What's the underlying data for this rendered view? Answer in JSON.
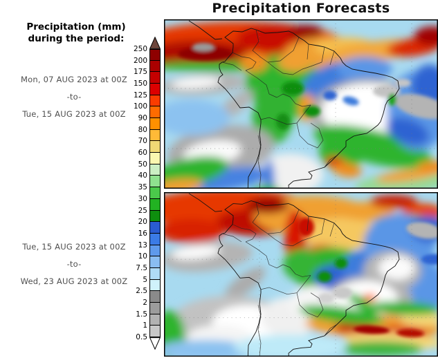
{
  "title": "Precipitation Forecasts",
  "sidebar": {
    "heading_line1": "Precipitation (mm)",
    "heading_line2": "during the period:",
    "period1": {
      "start": "Mon, 07 AUG 2023 at 00Z",
      "separator": "-to-",
      "end": "Tue, 15 AUG 2023 at 00Z"
    },
    "period2": {
      "start": "Tue, 15 AUG 2023 at 00Z",
      "separator": "-to-",
      "end": "Wed, 23 AUG 2023 at 00Z"
    }
  },
  "colorbar": {
    "unit": "mm",
    "labels": [
      "250",
      "200",
      "175",
      "150",
      "125",
      "100",
      "90",
      "80",
      "70",
      "60",
      "50",
      "40",
      "35",
      "30",
      "25",
      "20",
      "16",
      "13",
      "10",
      "7.5",
      "5",
      "2.5",
      "2",
      "1.5",
      "1",
      "0.5"
    ],
    "segment_colors": [
      "#8E0000",
      "#AA0000",
      "#C40000",
      "#DC0000",
      "#FA3C00",
      "#FF6B00",
      "#FF9000",
      "#FFBA37",
      "#F0D975",
      "#FAF7B0",
      "#CBEFC4",
      "#8FE18F",
      "#4BC94B",
      "#22B222",
      "#0E8E0E",
      "#2A5CD0",
      "#3B7BE6",
      "#5F9AEC",
      "#8ABDF2",
      "#B0DBF7",
      "#D0F2FB",
      "#8A8A8A",
      "#9C9C9C",
      "#B2B2B2",
      "#C8C8C8"
    ],
    "above_max_color": "#6E463C",
    "below_min_color": "#FFFFFF"
  },
  "chart_data": {
    "type": "heatmap",
    "title": "Precipitation Forecasts",
    "unit": "mm",
    "region": "South America",
    "scale_levels": [
      0.5,
      1,
      1.5,
      2,
      2.5,
      5,
      7.5,
      10,
      13,
      16,
      20,
      25,
      30,
      35,
      40,
      50,
      60,
      70,
      80,
      90,
      100,
      125,
      150,
      175,
      200,
      250
    ],
    "legend_position": "left",
    "panels": [
      {
        "period_start": "Mon, 07 AUG 2023 at 00Z",
        "period_end": "Tue, 15 AUG 2023 at 00Z"
      },
      {
        "period_start": "Tue, 15 AUG 2023 at 00Z",
        "period_end": "Wed, 23 AUG 2023 at 00Z"
      }
    ]
  },
  "maps": [
    {
      "name": "forecast-map-week1",
      "base_color": "#A8DAF0",
      "blobs": [
        [
          110,
          35,
          150,
          32,
          "#E63900",
          0,
          0
        ],
        [
          50,
          50,
          75,
          20,
          "#AE0700",
          0,
          0
        ],
        [
          160,
          28,
          55,
          20,
          "#C80F00",
          0,
          0
        ],
        [
          205,
          18,
          25,
          10,
          "#960000",
          0,
          0
        ],
        [
          232,
          52,
          60,
          26,
          "#F0A030",
          0,
          0
        ],
        [
          262,
          40,
          45,
          14,
          "#F5C050",
          0,
          0
        ],
        [
          310,
          45,
          75,
          14,
          "#F2A83A",
          -6,
          0
        ],
        [
          362,
          40,
          40,
          13,
          "#DC2800",
          -8,
          0
        ],
        [
          388,
          24,
          26,
          14,
          "#A00000",
          0,
          0
        ],
        [
          90,
          68,
          110,
          8,
          "#2EB42E",
          0,
          0
        ],
        [
          172,
          92,
          55,
          42,
          "#2EB42E",
          0,
          0
        ],
        [
          158,
          140,
          30,
          42,
          "#30B230",
          10,
          0
        ],
        [
          228,
          122,
          48,
          28,
          "#34B434",
          0,
          0
        ],
        [
          253,
          92,
          55,
          30,
          "#3E7BDC",
          -15,
          0
        ],
        [
          290,
          72,
          40,
          18,
          "#5A96E6",
          0,
          0
        ],
        [
          130,
          62,
          20,
          14,
          "#F09020",
          0,
          0
        ],
        [
          190,
          62,
          26,
          14,
          "#F0A030",
          0,
          0
        ],
        [
          207,
          128,
          12,
          20,
          "#F59A1E",
          0,
          0
        ],
        [
          296,
          138,
          85,
          52,
          "#ACACAC",
          0,
          0
        ],
        [
          294,
          133,
          66,
          40,
          "#FFFFFF",
          0,
          0
        ],
        [
          57,
          94,
          62,
          15,
          "#B4B4B4",
          -4,
          0
        ],
        [
          46,
          92,
          36,
          8,
          "#FAFAFA",
          -4,
          0
        ],
        [
          103,
          124,
          32,
          12,
          "#B4B4B4",
          -38,
          0
        ],
        [
          82,
          190,
          78,
          36,
          "#ACACAC",
          -8,
          0
        ],
        [
          70,
          193,
          42,
          17,
          "#FBFBFB",
          -8,
          0
        ],
        [
          182,
          224,
          48,
          30,
          "#F1F1F1",
          0,
          0
        ],
        [
          302,
          184,
          88,
          24,
          "#2EB42E",
          14,
          0
        ],
        [
          256,
          192,
          32,
          28,
          "#2EB42E",
          0,
          0
        ],
        [
          368,
          132,
          46,
          58,
          "#5A96E6",
          0,
          0
        ],
        [
          384,
          97,
          26,
          32,
          "#2E64D2",
          0,
          0
        ],
        [
          352,
          162,
          32,
          18,
          "#2E64D2",
          20,
          0
        ],
        [
          40,
          142,
          55,
          26,
          "#8CC2F0",
          0,
          0
        ],
        [
          84,
          232,
          72,
          16,
          "#4682E1",
          -8,
          0
        ],
        [
          36,
          221,
          58,
          20,
          "#2EB42E",
          -12,
          0
        ],
        [
          14,
          243,
          42,
          11,
          "#F0A030",
          -8,
          0
        ],
        [
          348,
          236,
          72,
          16,
          "#96D996",
          -6,
          0
        ],
        [
          352,
          226,
          46,
          8,
          "#F0A030",
          -8,
          0
        ],
        [
          392,
          214,
          26,
          9,
          "#F08C1E",
          0,
          0
        ],
        [
          248,
          207,
          15,
          8,
          "#DC2800",
          10,
          0
        ],
        [
          264,
          218,
          22,
          10,
          "#F08C1E",
          10,
          0
        ],
        [
          152,
          233,
          8,
          30,
          "#3E7BDC",
          0,
          0
        ],
        [
          148,
          252,
          22,
          12,
          "#2EB42E",
          0,
          0
        ],
        [
          60,
          50,
          40,
          10,
          "#8E0000",
          0,
          1
        ],
        [
          57,
          40,
          16,
          6,
          "#9A9A9A",
          0,
          1
        ],
        [
          186,
          100,
          16,
          10,
          "#0E8E0E",
          0,
          1
        ],
        [
          214,
          133,
          12,
          8,
          "#0E8E0E",
          0,
          1
        ],
        [
          172,
          148,
          10,
          12,
          "#128E12",
          0,
          1
        ],
        [
          322,
          104,
          20,
          9,
          "#C2C2C2",
          0,
          1
        ],
        [
          345,
          92,
          12,
          6,
          "#C6C6C6",
          0,
          1
        ],
        [
          372,
          126,
          40,
          16,
          "#B4B4B4",
          14,
          1
        ],
        [
          330,
          116,
          6,
          9,
          "#1EA41E",
          0,
          1
        ],
        [
          240,
          110,
          10,
          7,
          "#2E64D2",
          0,
          1
        ],
        [
          270,
          118,
          12,
          6,
          "#3E7BDC",
          15,
          1
        ]
      ]
    },
    {
      "name": "forecast-map-week2",
      "base_color": "#A8DAF0",
      "blobs": [
        [
          95,
          25,
          125,
          30,
          "#E63900",
          0,
          0
        ],
        [
          130,
          45,
          55,
          20,
          "#BE0800",
          0,
          0
        ],
        [
          40,
          58,
          48,
          18,
          "#D82000",
          0,
          0
        ],
        [
          215,
          35,
          85,
          30,
          "#F0A030",
          0,
          0
        ],
        [
          255,
          62,
          60,
          24,
          "#F5C860",
          0,
          0
        ],
        [
          190,
          68,
          16,
          42,
          "#D81400",
          0,
          0
        ],
        [
          228,
          92,
          26,
          14,
          "#E03000",
          0,
          0
        ],
        [
          292,
          28,
          42,
          14,
          "#F0A030",
          0,
          0
        ],
        [
          332,
          14,
          34,
          10,
          "#C81E00",
          0,
          0
        ],
        [
          374,
          30,
          30,
          13,
          "#E84000",
          0,
          0
        ],
        [
          345,
          46,
          42,
          14,
          "#34B434",
          0,
          0
        ],
        [
          150,
          20,
          30,
          12,
          "#960000",
          0,
          0
        ],
        [
          242,
          118,
          56,
          36,
          "#2EB42E",
          0,
          0
        ],
        [
          198,
          108,
          26,
          24,
          "#34B434",
          0,
          0
        ],
        [
          268,
          132,
          52,
          24,
          "#2E64D2",
          8,
          0
        ],
        [
          302,
          112,
          46,
          28,
          "#3E7BDC",
          0,
          0
        ],
        [
          340,
          78,
          52,
          46,
          "#5A96E6",
          0,
          0
        ],
        [
          372,
          142,
          36,
          42,
          "#5A96E6",
          0,
          0
        ],
        [
          382,
          55,
          26,
          20,
          "#2E64D2",
          0,
          0
        ],
        [
          330,
          117,
          42,
          30,
          "#B6B6B6",
          0,
          0
        ],
        [
          336,
          113,
          26,
          18,
          "#FBFBFB",
          0,
          0
        ],
        [
          297,
          162,
          62,
          38,
          "#B2B2B2",
          0,
          0
        ],
        [
          292,
          160,
          46,
          28,
          "#FFFFFF",
          0,
          0
        ],
        [
          62,
          96,
          66,
          22,
          "#B4B4B4",
          -6,
          0
        ],
        [
          46,
          90,
          36,
          10,
          "#FAFAFA",
          -6,
          0
        ],
        [
          117,
          136,
          36,
          13,
          "#ACACAC",
          -38,
          0
        ],
        [
          97,
          196,
          88,
          42,
          "#C2C2C2",
          0,
          0
        ],
        [
          122,
          194,
          52,
          26,
          "#FFFFFF",
          0,
          0
        ],
        [
          80,
          216,
          46,
          18,
          "#F4F4F4",
          0,
          0
        ],
        [
          182,
          186,
          42,
          30,
          "#F0F0F0",
          0,
          0
        ],
        [
          216,
          166,
          36,
          26,
          "#F5F5F5",
          0,
          0
        ],
        [
          302,
          200,
          98,
          19,
          "#F0A030",
          3,
          0
        ],
        [
          276,
          203,
          30,
          8,
          "#C81400",
          3,
          0
        ],
        [
          347,
          208,
          36,
          9,
          "#D82000",
          3,
          0
        ],
        [
          332,
          221,
          72,
          12,
          "#F5D878",
          3,
          0
        ],
        [
          372,
          190,
          30,
          10,
          "#F5D878",
          0,
          0
        ],
        [
          257,
          183,
          62,
          12,
          "#2EB42E",
          8,
          0
        ],
        [
          347,
          173,
          52,
          10,
          "#2EB42E",
          3,
          0
        ],
        [
          312,
          233,
          62,
          11,
          "#3CB43C",
          0,
          0
        ],
        [
          8,
          212,
          22,
          36,
          "#2EB42E",
          0,
          0
        ],
        [
          62,
          235,
          72,
          15,
          "#8CC2F0",
          0,
          0
        ],
        [
          182,
          230,
          82,
          18,
          "#BEEAF8",
          0,
          0
        ],
        [
          297,
          157,
          10,
          6,
          "#FF6E00",
          0,
          0
        ],
        [
          286,
          166,
          26,
          8,
          "#2EB42E",
          35,
          0
        ],
        [
          232,
          126,
          10,
          8,
          "#0E8E0E",
          0,
          1
        ],
        [
          256,
          106,
          9,
          8,
          "#0E8E0E",
          0,
          1
        ],
        [
          390,
          100,
          18,
          8,
          "#2E64D2",
          0,
          1
        ],
        [
          376,
          57,
          26,
          12,
          "#B4B4B4",
          10,
          1
        ],
        [
          205,
          52,
          12,
          14,
          "#C80F00",
          0,
          1
        ],
        [
          258,
          150,
          14,
          9,
          "#C8C8C8",
          0,
          1
        ],
        [
          234,
          158,
          12,
          8,
          "#D2D2D2",
          0,
          1
        ],
        [
          300,
          205,
          26,
          6,
          "#A00000",
          3,
          1
        ],
        [
          356,
          210,
          20,
          6,
          "#B40A00",
          3,
          1
        ]
      ]
    }
  ]
}
